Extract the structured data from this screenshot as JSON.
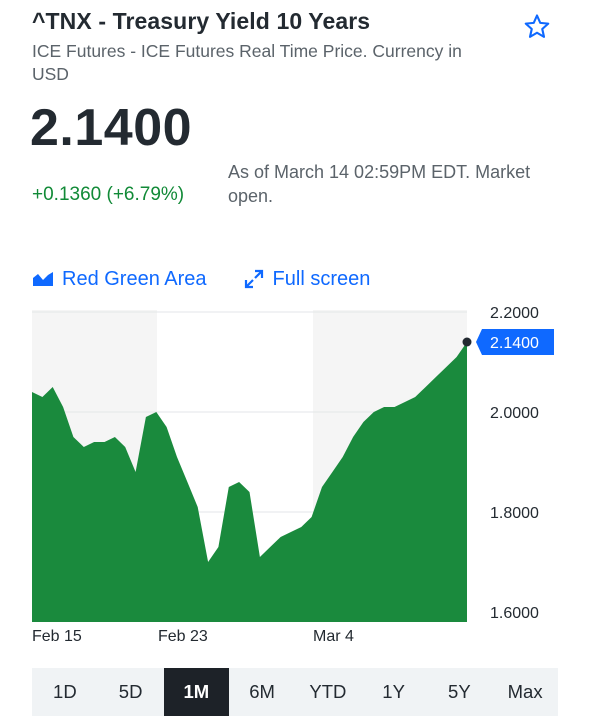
{
  "quote": {
    "title": "^TNX - Treasury Yield 10 Years",
    "subtitle": "ICE Futures - ICE Futures Real Time Price. Currency in USD",
    "price": "2.1400",
    "change": "+0.1360 (+6.79%)",
    "as_of": "As of March 14 02:59PM EDT. Market open."
  },
  "controls": {
    "chart_type_label": "Red Green Area",
    "fullscreen_label": "Full screen"
  },
  "ranges": [
    "1D",
    "5D",
    "1M",
    "6M",
    "YTD",
    "1Y",
    "5Y",
    "Max"
  ],
  "active_range": "1M",
  "colors": {
    "area_fill": "#1a8a3d",
    "positive": "#118a37",
    "link": "#0f69ff",
    "price_tag": "#0f69ff",
    "shade": "#f5f5f5"
  },
  "chart_data": {
    "type": "area",
    "y_ticks": [
      "2.2000",
      "2.0000",
      "1.8000",
      "1.6000"
    ],
    "x_ticks": [
      "Feb 15",
      "Feb 23",
      "Mar 4"
    ],
    "ylim": [
      1.58,
      2.2
    ],
    "current_value_label": "2.1400",
    "x_units": "session index (0 = Feb 15 open, ~21 = Mar 14)",
    "x": [
      0,
      0.5,
      1,
      1.5,
      2,
      2.5,
      3,
      3.5,
      4,
      4.5,
      5,
      5.5,
      6,
      6.5,
      7,
      7.5,
      8,
      8.5,
      9,
      9.5,
      10,
      10.5,
      11,
      11.5,
      12,
      12.5,
      13,
      13.5,
      14,
      14.5,
      15,
      15.5,
      16,
      16.5,
      17,
      17.5,
      18,
      18.5,
      19,
      19.5,
      20,
      20.5,
      21
    ],
    "values": [
      2.04,
      2.03,
      2.05,
      2.01,
      1.95,
      1.93,
      1.94,
      1.94,
      1.95,
      1.93,
      1.88,
      1.99,
      2.0,
      1.97,
      1.91,
      1.86,
      1.81,
      1.7,
      1.73,
      1.85,
      1.86,
      1.84,
      1.71,
      1.73,
      1.75,
      1.76,
      1.77,
      1.79,
      1.85,
      1.88,
      1.91,
      1.95,
      1.98,
      2.0,
      2.01,
      2.01,
      2.02,
      2.03,
      2.05,
      2.07,
      2.09,
      2.11,
      2.14
    ]
  }
}
